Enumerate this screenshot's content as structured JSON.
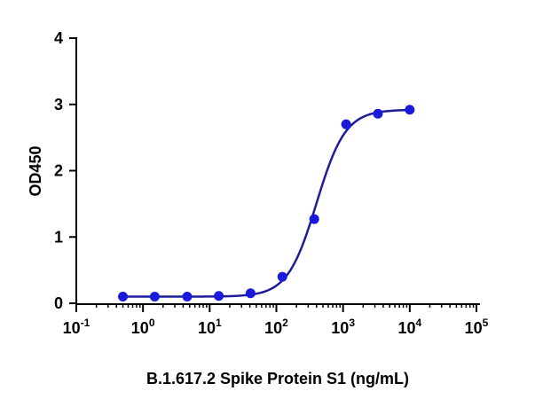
{
  "chart_data": {
    "type": "scatter",
    "title": "",
    "xlabel": "B.1.617.2 Spike Protein S1 (ng/mL)",
    "ylabel": "OD450",
    "x_scale": "log",
    "xlim": [
      0.1,
      100000
    ],
    "ylim": [
      0,
      4
    ],
    "x_ticks": [
      {
        "value": 0.1,
        "base": "10",
        "exp": "-1"
      },
      {
        "value": 1,
        "base": "10",
        "exp": "0"
      },
      {
        "value": 10,
        "base": "10",
        "exp": "1"
      },
      {
        "value": 100,
        "base": "10",
        "exp": "2"
      },
      {
        "value": 1000,
        "base": "10",
        "exp": "3"
      },
      {
        "value": 10000,
        "base": "10",
        "exp": "4"
      },
      {
        "value": 100000,
        "base": "10",
        "exp": "5"
      }
    ],
    "y_ticks": [
      "0",
      "1",
      "2",
      "3",
      "4"
    ],
    "grid": false,
    "legend": "none",
    "series": [
      {
        "color": "#1a1adc",
        "fit": "four-parameter logistic curve",
        "points": [
          {
            "x": 0.5,
            "y": 0.1
          },
          {
            "x": 1.5,
            "y": 0.1
          },
          {
            "x": 4.6,
            "y": 0.1
          },
          {
            "x": 13.7,
            "y": 0.11
          },
          {
            "x": 41,
            "y": 0.15
          },
          {
            "x": 123,
            "y": 0.4
          },
          {
            "x": 370,
            "y": 1.27
          },
          {
            "x": 1111,
            "y": 2.7
          },
          {
            "x": 3333,
            "y": 2.86
          },
          {
            "x": 10000,
            "y": 2.92
          }
        ]
      }
    ],
    "curve_color": "#1c1c9c"
  }
}
